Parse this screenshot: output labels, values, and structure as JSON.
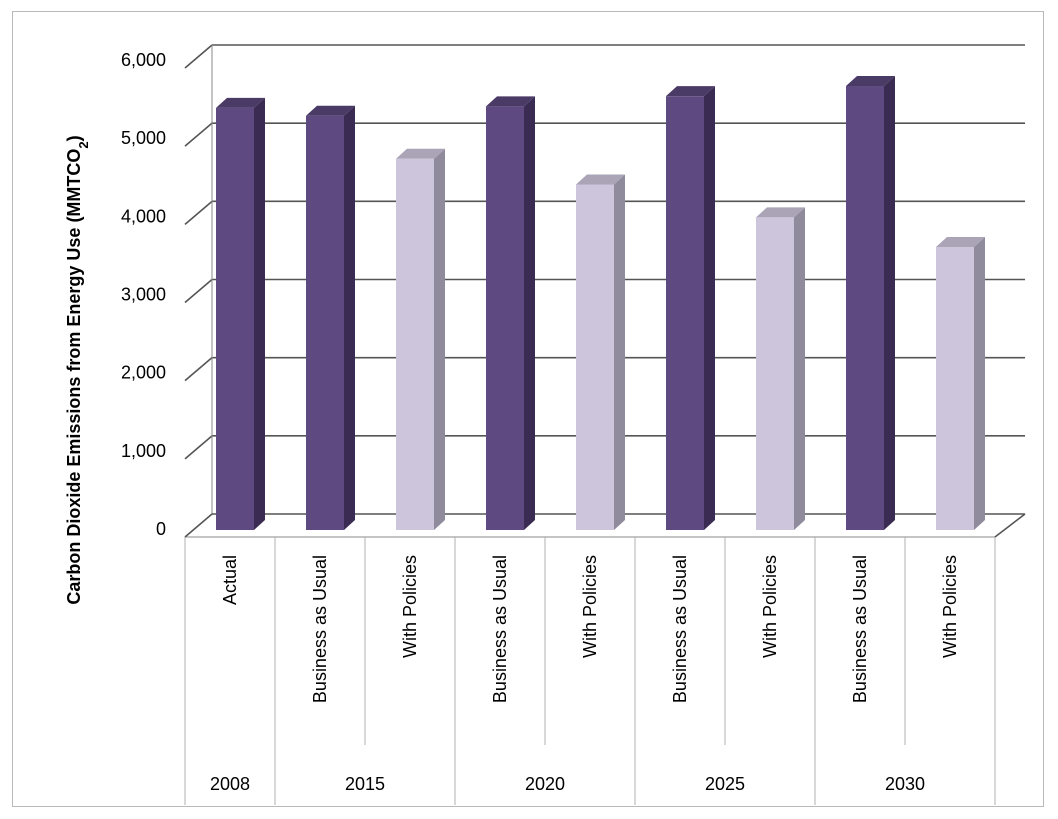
{
  "chart_data": {
    "type": "bar",
    "ylabel": "Carbon Dioxide Emissions from Energy Use (MMTCO",
    "ylabel_subscript": "2",
    "ylabel_suffix": ")",
    "ylim": [
      0,
      6000
    ],
    "yticks": [
      0,
      1000,
      2000,
      3000,
      4000,
      5000,
      6000
    ],
    "ytick_labels": [
      "0",
      "1,000",
      "2,000",
      "3,000",
      "4,000",
      "5,000",
      "6,000"
    ],
    "grid": true,
    "three_d": true,
    "groups": [
      {
        "label": "2008",
        "categories": [
          "Actual"
        ]
      },
      {
        "label": "2015",
        "categories": [
          "Business as Usual",
          "With Policies"
        ]
      },
      {
        "label": "2020",
        "categories": [
          "Business as Usual",
          "With Policies"
        ]
      },
      {
        "label": "2025",
        "categories": [
          "Business as Usual",
          "With Policies"
        ]
      },
      {
        "label": "2030",
        "categories": [
          "Business as Usual",
          "With Policies"
        ]
      }
    ],
    "bars": [
      {
        "group": "2008",
        "category": "Actual",
        "value": 5400,
        "style": "dark"
      },
      {
        "group": "2015",
        "category": "Business as Usual",
        "value": 5300,
        "style": "dark"
      },
      {
        "group": "2015",
        "category": "With Policies",
        "value": 4750,
        "style": "light"
      },
      {
        "group": "2020",
        "category": "Business as Usual",
        "value": 5420,
        "style": "dark"
      },
      {
        "group": "2020",
        "category": "With Policies",
        "value": 4420,
        "style": "light"
      },
      {
        "group": "2025",
        "category": "Business as Usual",
        "value": 5550,
        "style": "dark"
      },
      {
        "group": "2025",
        "category": "With Policies",
        "value": 4000,
        "style": "light"
      },
      {
        "group": "2030",
        "category": "Business as Usual",
        "value": 5680,
        "style": "dark"
      },
      {
        "group": "2030",
        "category": "With Policies",
        "value": 3620,
        "style": "light"
      }
    ],
    "colors": {
      "dark_front": "#5e4a80",
      "dark_top": "#4a3a66",
      "dark_side": "#3a2b52",
      "light_front": "#ccc5db",
      "light_top": "#aaa4b6",
      "light_side": "#8f8a9c",
      "grid": "#555555",
      "wall_line": "#8a8a8a",
      "axis": "#b0b0b0"
    }
  }
}
